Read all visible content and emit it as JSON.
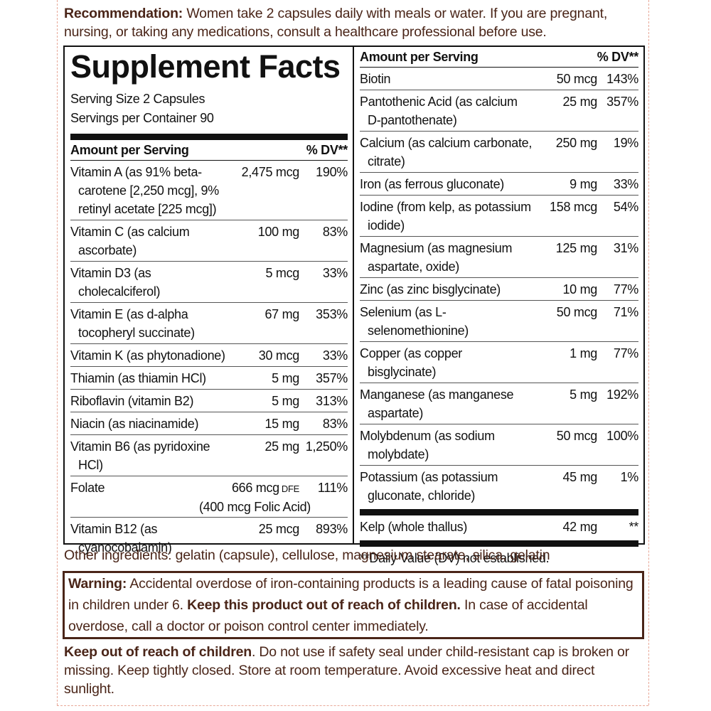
{
  "recommendation": {
    "label": "Recommendation:",
    "text": "Women take 2 capsules daily with meals or water. If you are pregnant, nursing, or taking any medications, consult a healthcare professional before use."
  },
  "facts": {
    "title": "Supplement Facts",
    "serving_size": "Serving Size 2 Capsules",
    "servings_per_container": "Servings per Container 90",
    "left": {
      "header": {
        "amount": "Amount per Serving",
        "dv": "% DV**"
      },
      "rows": [
        {
          "name": "Vitamin A (as 91% beta-carotene [2,250 mcg], 9% retinyl acetate [225 mcg])",
          "amount": "2,475 mcg",
          "dv": "190%"
        },
        {
          "name": "Vitamin C (as calcium ascorbate)",
          "amount": "100 mg",
          "dv": "83%"
        },
        {
          "name": "Vitamin D3 (as cholecalciferol)",
          "amount": "5 mcg",
          "dv": "33%"
        },
        {
          "name": "Vitamin E (as d-alpha tocopheryl succinate)",
          "amount": "67 mg",
          "dv": "353%"
        },
        {
          "name": "Vitamin K (as phytonadione)",
          "amount": "30 mcg",
          "dv": "33%"
        },
        {
          "name": "Thiamin (as thiamin HCl)",
          "amount": "5 mg",
          "dv": "357%"
        },
        {
          "name": "Riboflavin (vitamin B2)",
          "amount": "5 mg",
          "dv": "313%"
        },
        {
          "name": "Niacin (as niacinamide)",
          "amount": "15 mg",
          "dv": "83%"
        },
        {
          "name": "Vitamin B6 (as pyridoxine HCl)",
          "amount": "25 mg",
          "dv": "1,250%"
        },
        {
          "name": "Folate",
          "amount": "666 mcg",
          "unit": "DFE",
          "dv": "111%",
          "sub": "(400 mcg Folic Acid)"
        },
        {
          "name": "Vitamin B12 (as cyanocobalamin)",
          "amount": "25 mcg",
          "dv": "893%"
        }
      ]
    },
    "right": {
      "header": {
        "amount": "Amount per Serving",
        "dv": "% DV**"
      },
      "rows": [
        {
          "name": "Biotin",
          "amount": "50 mcg",
          "dv": "143%"
        },
        {
          "name": "Pantothenic Acid (as calcium D-pantothenate)",
          "amount": "25 mg",
          "dv": "357%"
        },
        {
          "name": "Calcium (as calcium carbonate, citrate)",
          "amount": "250 mg",
          "dv": "19%"
        },
        {
          "name": "Iron (as ferrous gluconate)",
          "amount": "9 mg",
          "dv": "33%"
        },
        {
          "name": "Iodine (from kelp, as potassium iodide)",
          "amount": "158 mcg",
          "dv": "54%"
        },
        {
          "name": "Magnesium (as magnesium aspartate, oxide)",
          "amount": "125 mg",
          "dv": "31%"
        },
        {
          "name": "Zinc (as zinc bisglycinate)",
          "amount": "10 mg",
          "dv": "77%"
        },
        {
          "name": "Selenium (as L-selenomethionine)",
          "amount": "50 mcg",
          "dv": "71%"
        },
        {
          "name": "Copper (as copper bisglycinate)",
          "amount": "1 mg",
          "dv": "77%"
        },
        {
          "name": "Manganese (as manganese aspartate)",
          "amount": "5 mg",
          "dv": "192%"
        },
        {
          "name": "Molybdenum (as sodium molybdate)",
          "amount": "50 mcg",
          "dv": "100%"
        },
        {
          "name": "Potassium (as potassium gluconate, chloride)",
          "amount": "45 mg",
          "dv": "1%"
        }
      ],
      "other_rows": [
        {
          "name": "Kelp (whole thallus)",
          "amount": "42 mg",
          "dv": "**"
        }
      ],
      "footnote": "**Daily Value (DV) not established."
    }
  },
  "other_ingredients": "Other ingredients: gelatin (capsule), cellulose, magnesium stearate, silica, gelatin",
  "warning": {
    "label": "Warning:",
    "text": "Accidental overdose of iron-containing products is a leading cause of fatal poisoning in children under 6.",
    "emphasis": "Keep this product out of reach of children.",
    "text2": "In case of accidental overdose, call a doctor or poison control center immediately."
  },
  "keep_out": {
    "label": "Keep out of reach of children",
    "text": ". Do not use if safety seal under child-resistant cap is broken or missing. Keep tightly closed. Store at room temperature. Avoid excessive heat and direct sunlight."
  }
}
